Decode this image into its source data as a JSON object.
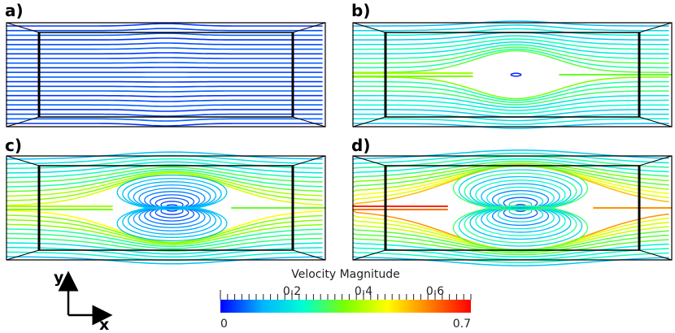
{
  "panels": [
    {
      "id": "a",
      "label": "a)",
      "recirculation": 0.0
    },
    {
      "id": "b",
      "label": "b)",
      "recirculation": 0.45
    },
    {
      "id": "c",
      "label": "c)",
      "recirculation": 0.75
    },
    {
      "id": "d",
      "label": "d)",
      "recirculation": 1.0
    }
  ],
  "colorbar": {
    "title": "Velocity Magnitude",
    "min_label": "0",
    "max_label": "0.7",
    "tick_labels": [
      "0.2",
      "0.4",
      "0.6"
    ],
    "tick_values": [
      0.2,
      0.4,
      0.6
    ],
    "min": 0,
    "max": 0.7,
    "colormap": [
      "#0000ff",
      "#00b4ff",
      "#00ffd0",
      "#7dff00",
      "#ffff00",
      "#ff8000",
      "#ff0000"
    ]
  },
  "axes": {
    "y_label": "y",
    "x_label": "x"
  }
}
